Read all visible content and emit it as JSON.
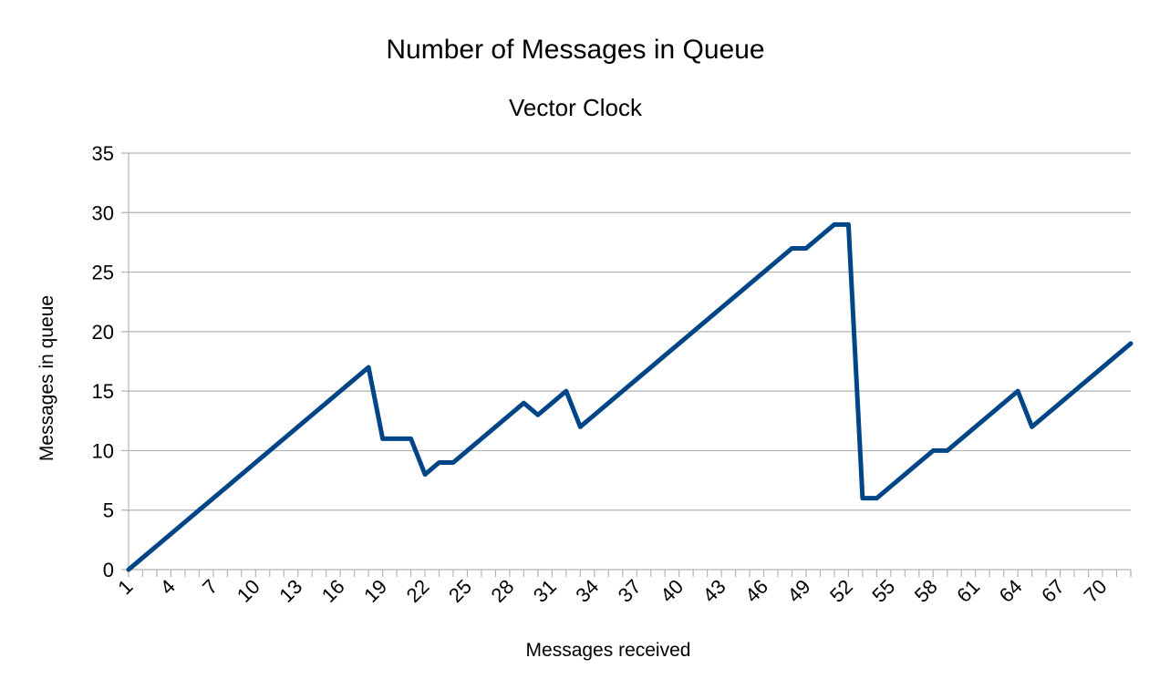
{
  "chart_data": {
    "type": "line",
    "title": "Number of Messages in Queue",
    "subtitle": "Vector Clock",
    "xlabel": "Messages received",
    "ylabel": "Messages in queue",
    "ylim": [
      0,
      35
    ],
    "yticks": [
      0,
      5,
      10,
      15,
      20,
      25,
      30,
      35
    ],
    "xtick_labels": [
      "1",
      "4",
      "7",
      "10",
      "13",
      "16",
      "19",
      "22",
      "25",
      "28",
      "31",
      "34",
      "37",
      "40",
      "43",
      "46",
      "49",
      "52",
      "55",
      "58",
      "61",
      "64",
      "67",
      "70"
    ],
    "grid": true,
    "x": [
      1,
      2,
      3,
      4,
      5,
      6,
      7,
      8,
      9,
      10,
      11,
      12,
      13,
      14,
      15,
      16,
      17,
      18,
      19,
      20,
      21,
      22,
      23,
      24,
      25,
      26,
      27,
      28,
      29,
      30,
      31,
      32,
      33,
      34,
      35,
      36,
      37,
      38,
      39,
      40,
      41,
      42,
      43,
      44,
      45,
      46,
      47,
      48,
      49,
      50,
      51,
      52,
      53,
      54,
      55,
      56,
      57,
      58,
      59,
      60,
      61,
      62,
      63,
      64,
      65,
      66,
      67,
      68,
      69,
      70,
      71,
      72
    ],
    "series": [
      {
        "color": "#004586",
        "values": [
          0,
          1,
          2,
          3,
          4,
          5,
          6,
          7,
          8,
          9,
          10,
          11,
          12,
          13,
          14,
          15,
          16,
          17,
          11,
          11,
          11,
          8,
          9,
          9,
          10,
          11,
          12,
          13,
          14,
          13,
          14,
          15,
          12,
          13,
          14,
          15,
          16,
          17,
          18,
          19,
          20,
          21,
          22,
          23,
          24,
          25,
          26,
          27,
          27,
          28,
          29,
          29,
          6,
          6,
          7,
          8,
          9,
          10,
          10,
          11,
          12,
          13,
          14,
          15,
          12,
          13,
          14,
          15,
          16,
          17,
          18,
          19
        ]
      }
    ]
  }
}
